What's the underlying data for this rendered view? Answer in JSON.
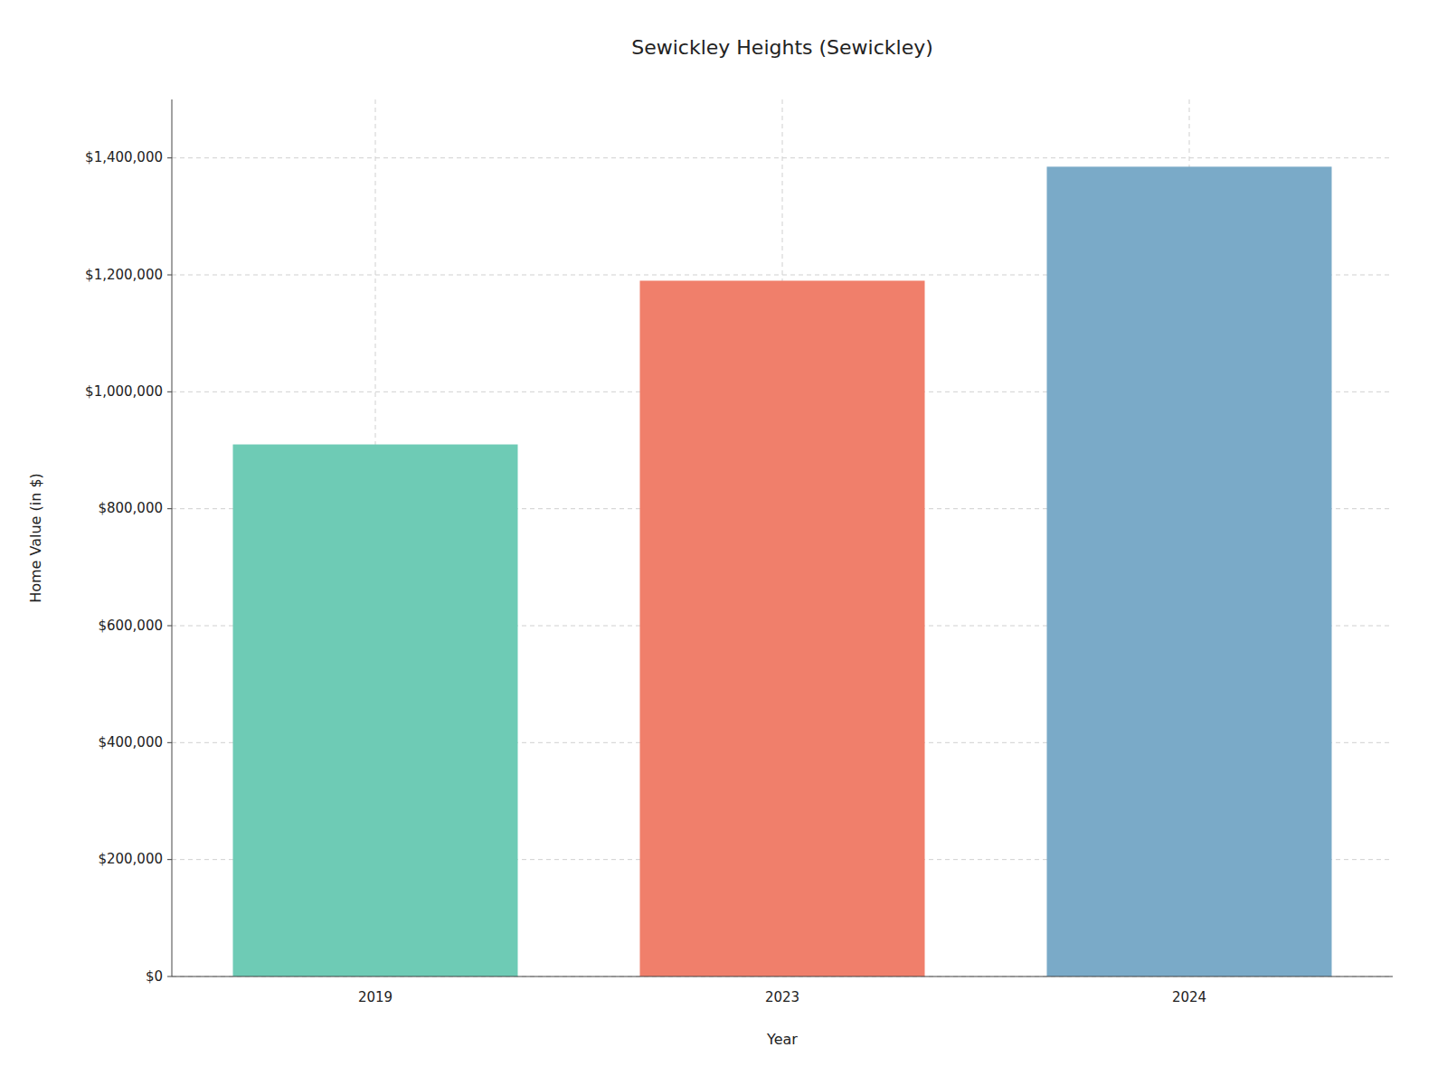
{
  "chart_data": {
    "type": "bar",
    "title": "Sewickley Heights (Sewickley)",
    "x_label": "Year",
    "y_label": "Home Value (in $)",
    "categories": [
      "2019",
      "2023",
      "2024"
    ],
    "values": [
      910000,
      1190000,
      1385000
    ],
    "colors": [
      "#6ecbb5",
      "#f07f6b",
      "#7aaac8"
    ],
    "ylim": [
      0,
      1500000
    ],
    "yticks": [
      {
        "value": 0,
        "label": "$0"
      },
      {
        "value": 200000,
        "label": "$200,000"
      },
      {
        "value": 400000,
        "label": "$400,000"
      },
      {
        "value": 600000,
        "label": "$600,000"
      },
      {
        "value": 800000,
        "label": "$800,000"
      },
      {
        "value": 1000000,
        "label": "$1,000,000"
      },
      {
        "value": 1200000,
        "label": "$1,200,000"
      },
      {
        "value": 1400000,
        "label": "$1,400,000"
      }
    ],
    "grid": true
  }
}
